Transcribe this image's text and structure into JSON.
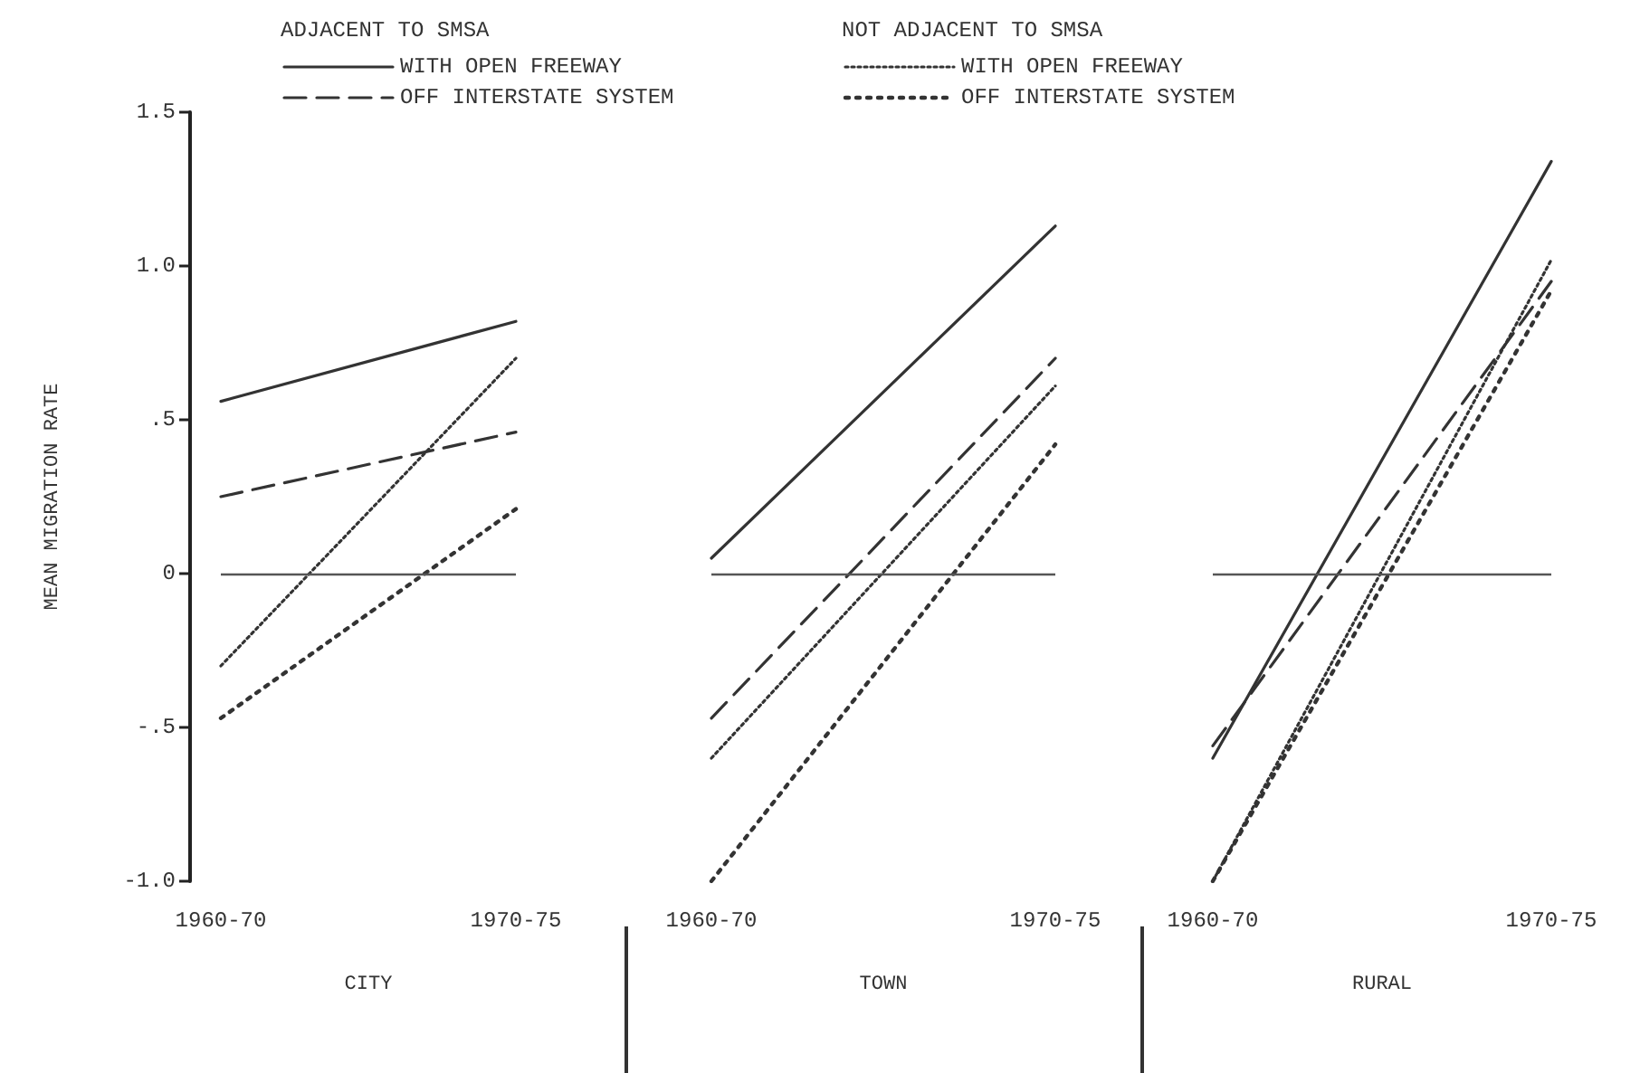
{
  "chart_data": [
    {
      "type": "line",
      "ylabel": "MEAN MIGRATION RATE",
      "xlabel": "CITY",
      "categories": [
        "1960-70",
        "1970-75"
      ],
      "legend": "top",
      "annotations": [
        "ADJACENT TO SMSA",
        "NOT ADJACENT TO SMSA"
      ],
      "marker": "none",
      "grid": false,
      "ylim": [
        -1,
        1.5
      ],
      "yticks": [
        {
          "value": -1,
          "label": "-1.0"
        },
        {
          "value": -0.5,
          "label": "-.5"
        },
        0,
        {
          "value": 0.5,
          "label": ".5"
        },
        {
          "value": 1,
          "label": "1.0"
        },
        {
          "value": 1.5,
          "label": "1.5"
        }
      ],
      "ref_lines": [
        {
          "axis": "y",
          "value": 0
        }
      ],
      "series": [
        {
          "name": "WITH OPEN FREEWAY",
          "color": "#333333",
          "line_style": "solid",
          "values": [
            0.56,
            0.82
          ]
        },
        {
          "name": "OFF INTERSTATE SYSTEM",
          "color": "#333333",
          "line_style": "dashed",
          "values": [
            0.25,
            0.46
          ]
        },
        {
          "name": "WITH OPEN FREEWAY",
          "color": "#333333",
          "line_style": "dotted",
          "values": [
            -0.3,
            0.7
          ]
        },
        {
          "name": "OFF INTERSTATE SYSTEM",
          "color": "#333333",
          "line_style": "dotted",
          "values": [
            -0.47,
            0.21
          ]
        }
      ]
    },
    {
      "type": "line",
      "xlabel": "TOWN",
      "categories": [
        "1960-70",
        "1970-75"
      ],
      "marker": "none",
      "grid": false,
      "tick_labels": "x",
      "ylim": [
        -1,
        1.5
      ],
      "ref_lines": [
        {
          "axis": "y",
          "value": 0
        }
      ],
      "series": [
        {
          "color": "#333333",
          "line_style": "solid",
          "values": [
            0.05,
            1.13
          ]
        },
        {
          "color": "#333333",
          "line_style": "dashed",
          "values": [
            -0.47,
            0.7
          ]
        },
        {
          "color": "#333333",
          "line_style": "dotted",
          "values": [
            -0.6,
            0.61
          ]
        },
        {
          "color": "#333333",
          "line_style": "dotted",
          "values": [
            -1.0,
            0.42
          ]
        }
      ]
    },
    {
      "type": "line",
      "xlabel": "RURAL",
      "categories": [
        "1960-70",
        "1970-75"
      ],
      "marker": "none",
      "grid": false,
      "tick_labels": "x",
      "ylim": [
        -1,
        1.5
      ],
      "ref_lines": [
        {
          "axis": "y",
          "value": 0
        }
      ],
      "series": [
        {
          "color": "#333333",
          "line_style": "solid",
          "values": [
            -0.6,
            1.34
          ]
        },
        {
          "color": "#333333",
          "line_style": "dashed",
          "values": [
            -0.56,
            0.95
          ]
        },
        {
          "color": "#333333",
          "line_style": "dotted",
          "values": [
            -1.0,
            1.02
          ]
        },
        {
          "color": "#333333",
          "line_style": "dotted",
          "values": [
            -1.0,
            0.92
          ]
        }
      ]
    }
  ]
}
